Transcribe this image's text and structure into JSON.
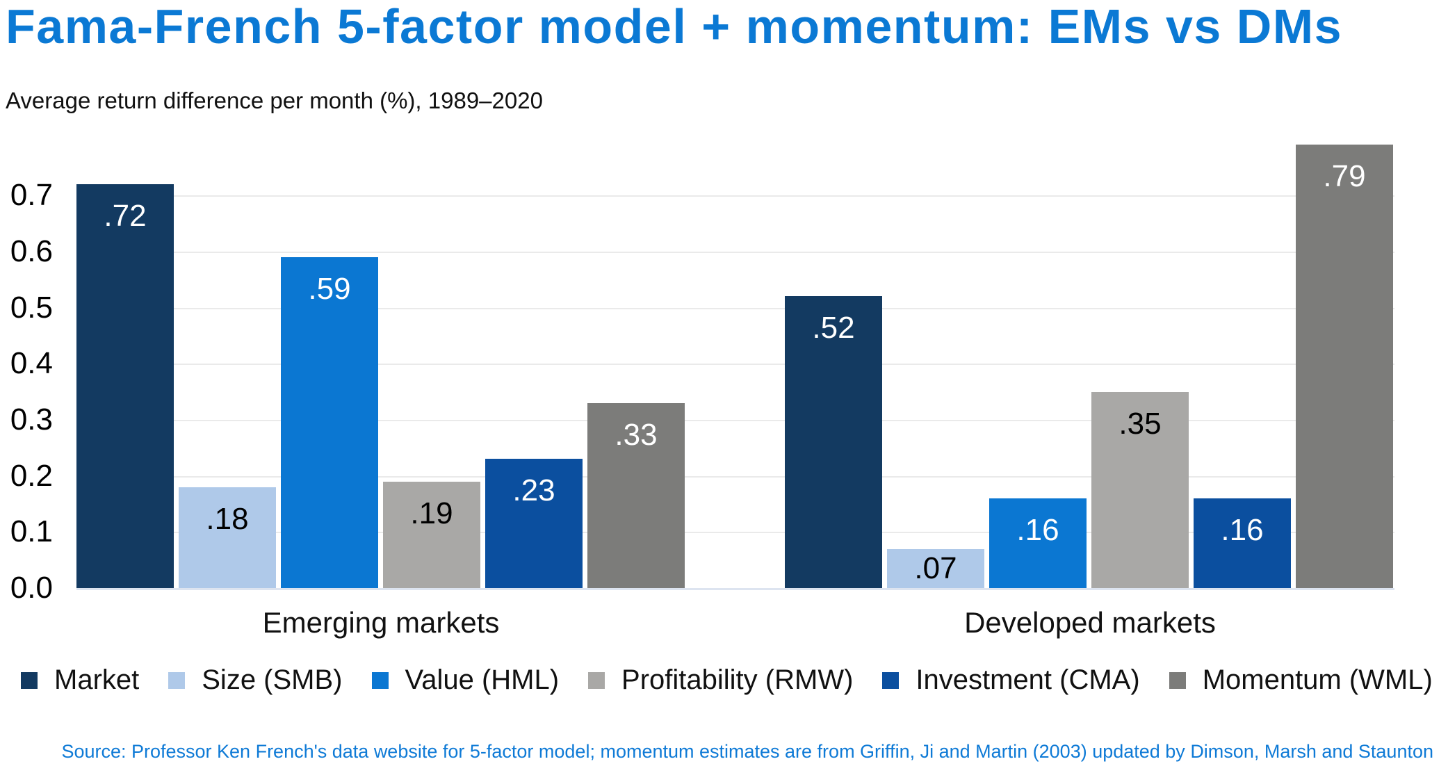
{
  "header": {
    "title": "Fama-French 5-factor model + momentum: EMs vs DMs",
    "subtitle": "Average return difference per month (%), 1989–2020"
  },
  "chart_data": {
    "type": "bar",
    "title": "Fama-French 5-factor model + momentum: EMs vs DMs",
    "subtitle": "Average return difference per month (%), 1989–2020",
    "categories": [
      "Emerging markets",
      "Developed markets"
    ],
    "series": [
      {
        "name": "Market",
        "color": "#133a61",
        "label_color": "#ffffff",
        "values": [
          0.72,
          0.52
        ],
        "labels": [
          ".72",
          ".52"
        ]
      },
      {
        "name": "Size (SMB)",
        "color": "#afc9e9",
        "label_color": "#000000",
        "values": [
          0.18,
          0.07
        ],
        "labels": [
          ".18",
          ".07"
        ]
      },
      {
        "name": "Value (HML)",
        "color": "#0b77d2",
        "label_color": "#ffffff",
        "values": [
          0.59,
          0.16
        ],
        "labels": [
          ".59",
          ".16"
        ]
      },
      {
        "name": "Profitability (RMW)",
        "color": "#a9a8a6",
        "label_color": "#000000",
        "values": [
          0.19,
          0.35
        ],
        "labels": [
          ".19",
          ".35"
        ]
      },
      {
        "name": "Investment (CMA)",
        "color": "#0b4f9f",
        "label_color": "#ffffff",
        "values": [
          0.23,
          0.16
        ],
        "labels": [
          ".23",
          ".16"
        ]
      },
      {
        "name": "Momentum (WML)",
        "color": "#7c7c7a",
        "label_color": "#ffffff",
        "values": [
          0.33,
          0.79
        ],
        "labels": [
          ".33",
          ".79"
        ]
      }
    ],
    "y_axis": {
      "ticks": [
        "0.0",
        "0.1",
        "0.2",
        "0.3",
        "0.4",
        "0.5",
        "0.6",
        "0.7"
      ],
      "min": 0.0,
      "max": 0.7,
      "grid": true
    },
    "legend_position": "bottom",
    "ylim": [
      0.0,
      0.8
    ]
  },
  "footer": {
    "source": "Source: Professor Ken French's data website for 5-factor model; momentum estimates are from Griffin, Ji and Martin (2003) updated by Dimson, Marsh and Staunton"
  },
  "colors": {
    "title_blue": "#0b79d4",
    "source_blue": "#0e7ad6",
    "gridline": "#eaeaea",
    "baseline": "#dde4f0"
  }
}
